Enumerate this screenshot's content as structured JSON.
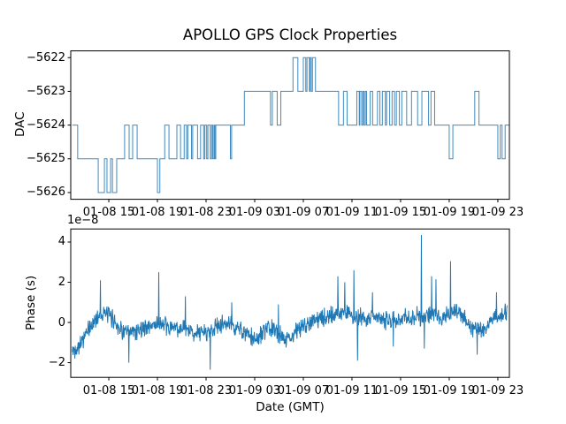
{
  "title": "APOLLO GPS Clock Properties",
  "colors": {
    "line": "#1f77b4",
    "axis": "#000000",
    "background": "#ffffff"
  },
  "xaxis": {
    "label": "Date (GMT)",
    "tick_hours": [
      15,
      19,
      23,
      27,
      31,
      35,
      39,
      43,
      47
    ],
    "tick_labels": [
      "01-08 15",
      "01-08 19",
      "01-08 23",
      "01-09 03",
      "01-09 07",
      "01-09 11",
      "01-09 15",
      "01-09 19",
      "01-09 23"
    ],
    "x_unit": "hours since 01-08 00:00 GMT"
  },
  "chart_data": [
    {
      "id": "dac",
      "type": "line",
      "subtype": "step",
      "ylabel": "DAC",
      "xlim": [
        11.87,
        47.95
      ],
      "ylim": [
        -5626.2,
        -5621.8
      ],
      "ytick_values": [
        -5622,
        -5623,
        -5624,
        -5625,
        -5626
      ],
      "ytick_labels": [
        "−5622",
        "−5623",
        "−5624",
        "−5625",
        "−5626"
      ],
      "grid": false,
      "legend": null,
      "x_end": 47.95,
      "steps": [
        [
          12.0,
          -5624
        ],
        [
          12.44,
          -5625
        ],
        [
          14.13,
          -5626
        ],
        [
          14.64,
          -5625
        ],
        [
          14.85,
          -5626
        ],
        [
          15.15,
          -5625
        ],
        [
          15.3,
          -5626
        ],
        [
          15.65,
          -5625
        ],
        [
          16.3,
          -5624
        ],
        [
          16.67,
          -5625
        ],
        [
          16.96,
          -5624
        ],
        [
          17.33,
          -5625
        ],
        [
          19.0,
          -5626
        ],
        [
          19.2,
          -5625
        ],
        [
          19.6,
          -5624
        ],
        [
          19.95,
          -5625
        ],
        [
          20.6,
          -5624
        ],
        [
          20.9,
          -5625
        ],
        [
          21.2,
          -5624
        ],
        [
          21.4,
          -5625
        ],
        [
          21.5,
          -5624
        ],
        [
          21.8,
          -5625
        ],
        [
          21.9,
          -5624
        ],
        [
          22.3,
          -5625
        ],
        [
          22.55,
          -5624
        ],
        [
          22.8,
          -5625
        ],
        [
          22.9,
          -5624
        ],
        [
          23.05,
          -5625
        ],
        [
          23.15,
          -5624
        ],
        [
          23.35,
          -5625
        ],
        [
          23.45,
          -5624
        ],
        [
          23.55,
          -5625
        ],
        [
          23.65,
          -5624
        ],
        [
          23.72,
          -5625
        ],
        [
          23.8,
          -5624
        ],
        [
          25.0,
          -5625
        ],
        [
          25.1,
          -5624
        ],
        [
          26.15,
          -5623
        ],
        [
          28.3,
          -5624
        ],
        [
          28.45,
          -5623
        ],
        [
          28.85,
          -5624
        ],
        [
          29.15,
          -5623
        ],
        [
          30.15,
          -5622
        ],
        [
          30.55,
          -5623
        ],
        [
          31.0,
          -5622
        ],
        [
          31.2,
          -5623
        ],
        [
          31.3,
          -5622
        ],
        [
          31.5,
          -5623
        ],
        [
          31.55,
          -5622
        ],
        [
          31.65,
          -5623
        ],
        [
          31.75,
          -5622
        ],
        [
          32.0,
          -5623
        ],
        [
          33.9,
          -5624
        ],
        [
          34.3,
          -5623
        ],
        [
          34.6,
          -5624
        ],
        [
          35.4,
          -5623
        ],
        [
          35.6,
          -5624
        ],
        [
          35.65,
          -5623
        ],
        [
          35.8,
          -5624
        ],
        [
          35.9,
          -5623
        ],
        [
          36.0,
          -5624
        ],
        [
          36.1,
          -5623
        ],
        [
          36.2,
          -5624
        ],
        [
          36.5,
          -5623
        ],
        [
          36.7,
          -5624
        ],
        [
          37.1,
          -5623
        ],
        [
          37.3,
          -5624
        ],
        [
          37.5,
          -5623
        ],
        [
          37.75,
          -5624
        ],
        [
          37.85,
          -5623
        ],
        [
          38.1,
          -5624
        ],
        [
          38.3,
          -5623
        ],
        [
          38.5,
          -5624
        ],
        [
          38.65,
          -5623
        ],
        [
          38.9,
          -5624
        ],
        [
          39.1,
          -5623
        ],
        [
          39.5,
          -5624
        ],
        [
          39.9,
          -5623
        ],
        [
          40.4,
          -5624
        ],
        [
          40.75,
          -5623
        ],
        [
          41.3,
          -5624
        ],
        [
          41.5,
          -5623
        ],
        [
          41.8,
          -5624
        ],
        [
          43.0,
          -5625
        ],
        [
          43.3,
          -5624
        ],
        [
          45.1,
          -5623
        ],
        [
          45.45,
          -5624
        ],
        [
          47.0,
          -5625
        ],
        [
          47.2,
          -5624
        ],
        [
          47.35,
          -5625
        ],
        [
          47.6,
          -5624
        ]
      ]
    },
    {
      "id": "phase",
      "type": "line",
      "subtype": "noisy",
      "ylabel": "Phase (s)",
      "offset_label": "1e−8",
      "xlabel": "Date (GMT)",
      "xlim": [
        11.87,
        47.95
      ],
      "ylim_1e8": [
        -2.73,
        4.65
      ],
      "ytick_values": [
        -2,
        0,
        2,
        4
      ],
      "ytick_labels": [
        "−2",
        "0",
        "2",
        "4"
      ],
      "grid": false,
      "legend": null,
      "value_scale": 1e-08,
      "x_start": 12.0,
      "x_end": 47.78,
      "sample_step": 0.03,
      "noise_amplitude": 1.0,
      "anchors_1e8": [
        [
          12.0,
          -1.5
        ],
        [
          12.4,
          -1.2
        ],
        [
          12.8,
          -0.9
        ],
        [
          13.2,
          -0.5
        ],
        [
          13.6,
          -0.15
        ],
        [
          14.0,
          0.25
        ],
        [
          14.4,
          0.45
        ],
        [
          14.9,
          0.4
        ],
        [
          15.3,
          0.2
        ],
        [
          15.7,
          -0.1
        ],
        [
          16.1,
          -0.4
        ],
        [
          16.6,
          -0.55
        ],
        [
          17.1,
          -0.45
        ],
        [
          17.7,
          -0.3
        ],
        [
          18.3,
          -0.2
        ],
        [
          18.9,
          -0.05
        ],
        [
          19.3,
          -0.1
        ],
        [
          19.9,
          -0.3
        ],
        [
          20.5,
          -0.25
        ],
        [
          21.1,
          -0.35
        ],
        [
          21.7,
          -0.45
        ],
        [
          22.3,
          -0.5
        ],
        [
          22.9,
          -0.5
        ],
        [
          23.5,
          -0.35
        ],
        [
          24.1,
          -0.15
        ],
        [
          24.7,
          -0.05
        ],
        [
          25.3,
          -0.2
        ],
        [
          25.9,
          -0.4
        ],
        [
          26.5,
          -0.7
        ],
        [
          27.1,
          -0.85
        ],
        [
          27.7,
          -0.5
        ],
        [
          28.3,
          -0.3
        ],
        [
          28.9,
          -0.5
        ],
        [
          29.5,
          -0.8
        ],
        [
          30.1,
          -0.65
        ],
        [
          30.7,
          -0.3
        ],
        [
          31.3,
          0.0
        ],
        [
          31.9,
          0.1
        ],
        [
          32.5,
          0.15
        ],
        [
          33.1,
          0.3
        ],
        [
          33.7,
          0.45
        ],
        [
          34.3,
          0.5
        ],
        [
          34.9,
          0.35
        ],
        [
          35.5,
          0.25
        ],
        [
          36.1,
          0.2
        ],
        [
          36.7,
          0.3
        ],
        [
          37.3,
          0.2
        ],
        [
          37.9,
          0.1
        ],
        [
          38.5,
          0.15
        ],
        [
          39.1,
          0.25
        ],
        [
          39.7,
          0.2
        ],
        [
          40.3,
          0.3
        ],
        [
          40.9,
          0.3
        ],
        [
          41.5,
          0.4
        ],
        [
          42.1,
          0.3
        ],
        [
          42.7,
          0.35
        ],
        [
          43.3,
          0.5
        ],
        [
          43.9,
          0.4
        ],
        [
          44.5,
          0.0
        ],
        [
          45.1,
          -0.35
        ],
        [
          45.7,
          -0.35
        ],
        [
          46.3,
          0.0
        ],
        [
          46.9,
          0.3
        ],
        [
          47.5,
          0.4
        ],
        [
          47.78,
          0.55
        ]
      ],
      "spikes_1e8": [
        [
          12.2,
          -1.8
        ],
        [
          14.3,
          2.1
        ],
        [
          16.65,
          -2.0
        ],
        [
          19.1,
          2.5
        ],
        [
          21.3,
          1.3
        ],
        [
          23.35,
          -2.35
        ],
        [
          25.1,
          1.0
        ],
        [
          28.95,
          0.9
        ],
        [
          33.85,
          2.3
        ],
        [
          34.4,
          2.0
        ],
        [
          35.15,
          2.6
        ],
        [
          35.45,
          -1.9
        ],
        [
          36.7,
          1.5
        ],
        [
          38.4,
          -1.2
        ],
        [
          40.7,
          4.35
        ],
        [
          40.95,
          -1.3
        ],
        [
          41.55,
          2.3
        ],
        [
          41.9,
          2.15
        ],
        [
          43.1,
          3.05
        ],
        [
          45.3,
          -1.6
        ],
        [
          46.9,
          1.5
        ]
      ]
    }
  ]
}
